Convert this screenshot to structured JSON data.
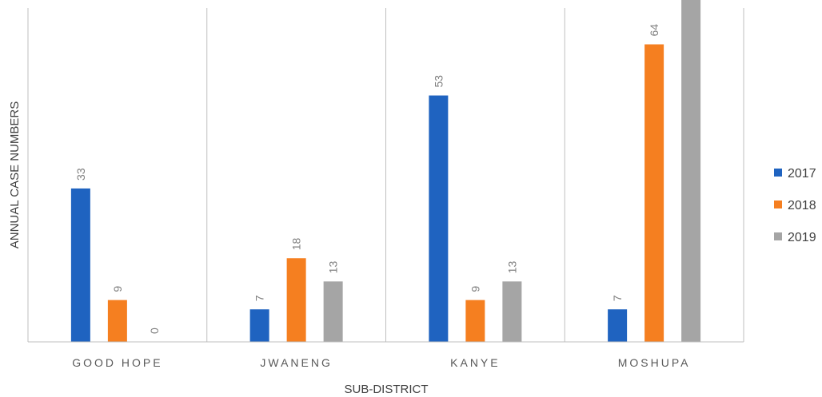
{
  "chart_data": {
    "type": "bar",
    "title": "",
    "xlabel": "SUB-DISTRICT",
    "ylabel": "ANNUAL CASE NUMBERS",
    "categories": [
      "GOOD HOPE",
      "JWANENG",
      "KANYE",
      "MOSHUPA"
    ],
    "series": [
      {
        "name": "2017",
        "color": "#1f63c0",
        "values": [
          33,
          7,
          53,
          7
        ]
      },
      {
        "name": "2018",
        "color": "#f57f20",
        "values": [
          9,
          18,
          9,
          64
        ]
      },
      {
        "name": "2019",
        "color": "#a5a5a5",
        "values": [
          0,
          13,
          13,
          75
        ]
      }
    ],
    "ylim": [
      0,
      80
    ],
    "grid": "vertical-category-separators",
    "legend": "right",
    "data_labels": true,
    "axis_color": "#bfbfbf"
  }
}
